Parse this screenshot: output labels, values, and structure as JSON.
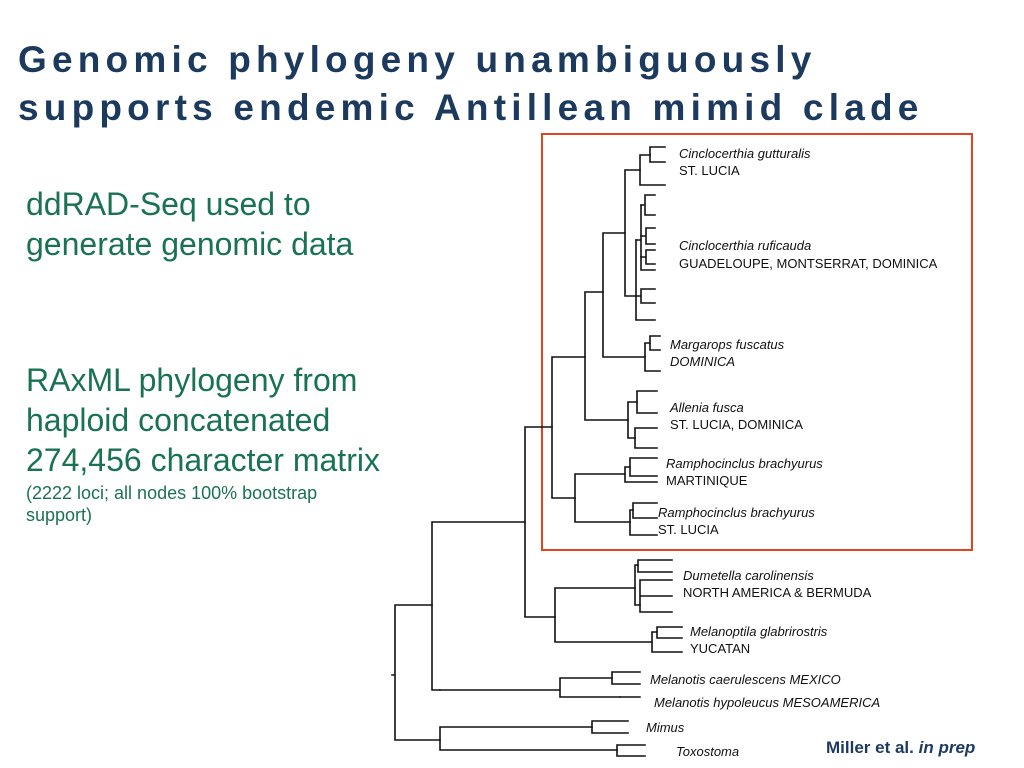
{
  "slide": {
    "title_line1": "Genomic phylogeny unambiguously",
    "title_line2": "supports endemic Antillean mimid clade",
    "bullet1": [
      "ddRAD-Seq used to",
      "generate genomic data"
    ],
    "bullet2": [
      "RAxML phylogeny from",
      "haploid concatenated",
      "274,456 character matrix"
    ],
    "bullet2_note": [
      "(2222 loci; all nodes 100% bootstrap",
      "support)"
    ],
    "citation_authors": "Miller et al.",
    "citation_status": "in prep"
  },
  "tree": {
    "highlight_color": "#e0451f",
    "labels": {
      "cinc_gut_species": "Cinclocerthia gutturalis",
      "cinc_gut_locale": "ST. LUCIA",
      "cinc_ruf_species": "Cinclocerthia ruficauda",
      "cinc_ruf_locale": "GUADELOUPE, MONTSERRAT, DOMINICA",
      "marg_species": "Margarops fuscatus",
      "marg_locale": "DOMINICA",
      "allenia_species": "Allenia fusca",
      "allenia_locale": "ST. LUCIA, DOMINICA",
      "ramph1_species": "Ramphocinclus brachyurus",
      "ramph1_locale": "MARTINIQUE",
      "ramph2_species": "Ramphocinclus brachyurus",
      "ramph2_locale": "ST. LUCIA",
      "dum_species": "Dumetella carolinensis",
      "dum_locale": "NORTH AMERICA & BERMUDA",
      "melanop_species": "Melanoptila glabrirostris",
      "melanop_locale": "YUCATAN",
      "melan_caer": "Melanotis caerulescens MEXICO",
      "melan_hypo": "Melanotis hypoleucus MESOAMERICA",
      "mimus": "Mimus",
      "toxostoma": "Toxostoma"
    }
  }
}
